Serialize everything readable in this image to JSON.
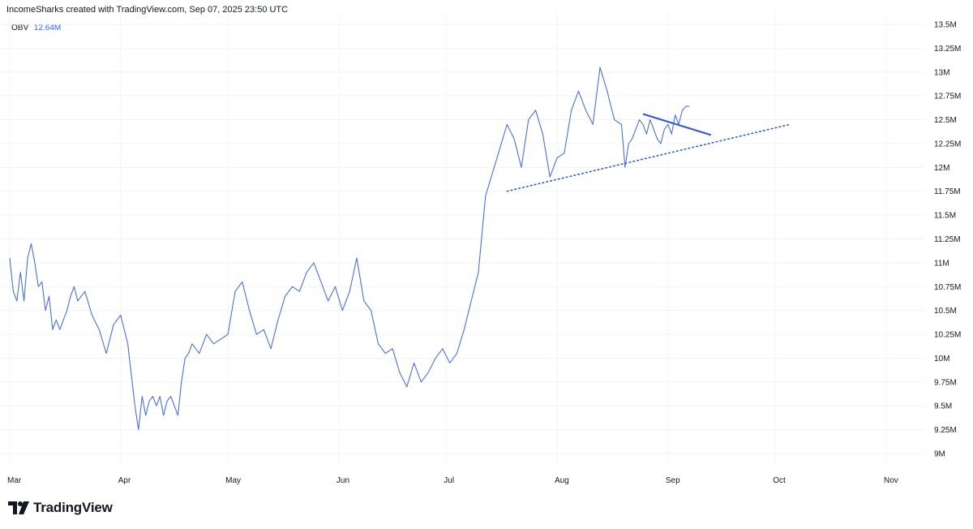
{
  "header": {
    "attribution": "IncomeSharks created with TradingView.com, Sep 07, 2025 23:50 UTC"
  },
  "legend": {
    "name": "OBV",
    "value": "12.64M"
  },
  "branding": {
    "logo_text": "TradingView"
  },
  "colors": {
    "series": "#4a72d4",
    "trendline": "#2d5bd6",
    "grid": "#f0f3fa",
    "text": "#131722"
  },
  "chart_data": {
    "type": "line",
    "title": "",
    "xlabel": "",
    "ylabel": "",
    "x_ticks": [
      "Mar",
      "Apr",
      "May",
      "Jun",
      "Jul",
      "Aug",
      "Sep",
      "Oct",
      "Nov"
    ],
    "y_ticks": [
      "13.5M",
      "13.25M",
      "13M",
      "12.75M",
      "12.5M",
      "12.25M",
      "12M",
      "11.75M",
      "11.5M",
      "11.25M",
      "11M",
      "10.75M",
      "10.5M",
      "10.25M",
      "10M",
      "9.75M",
      "9.5M",
      "9.25M",
      "9M"
    ],
    "y_tick_values": [
      13.5,
      13.25,
      13,
      12.75,
      12.5,
      12.25,
      12,
      11.75,
      11.5,
      11.25,
      11,
      10.75,
      10.5,
      10.25,
      10,
      9.75,
      9.5,
      9.25,
      9
    ],
    "ylim": [
      8.9,
      13.6
    ],
    "units": "M",
    "grid": true,
    "series": [
      {
        "name": "OBV",
        "dates": [
          "2025-03-01",
          "2025-03-02",
          "2025-03-03",
          "2025-03-04",
          "2025-03-05",
          "2025-03-06",
          "2025-03-07",
          "2025-03-08",
          "2025-03-09",
          "2025-03-10",
          "2025-03-11",
          "2025-03-12",
          "2025-03-13",
          "2025-03-14",
          "2025-03-15",
          "2025-03-16",
          "2025-03-17",
          "2025-03-18",
          "2025-03-19",
          "2025-03-20",
          "2025-03-22",
          "2025-03-24",
          "2025-03-26",
          "2025-03-28",
          "2025-03-30",
          "2025-04-01",
          "2025-04-03",
          "2025-04-05",
          "2025-04-06",
          "2025-04-07",
          "2025-04-08",
          "2025-04-09",
          "2025-04-10",
          "2025-04-11",
          "2025-04-12",
          "2025-04-13",
          "2025-04-14",
          "2025-04-15",
          "2025-04-16",
          "2025-04-17",
          "2025-04-18",
          "2025-04-19",
          "2025-04-20",
          "2025-04-21",
          "2025-04-23",
          "2025-04-25",
          "2025-04-27",
          "2025-04-29",
          "2025-05-01",
          "2025-05-03",
          "2025-05-05",
          "2025-05-07",
          "2025-05-09",
          "2025-05-11",
          "2025-05-13",
          "2025-05-15",
          "2025-05-17",
          "2025-05-19",
          "2025-05-21",
          "2025-05-23",
          "2025-05-25",
          "2025-05-27",
          "2025-05-29",
          "2025-05-31",
          "2025-06-02",
          "2025-06-04",
          "2025-06-06",
          "2025-06-08",
          "2025-06-10",
          "2025-06-12",
          "2025-06-14",
          "2025-06-16",
          "2025-06-18",
          "2025-06-20",
          "2025-06-22",
          "2025-06-24",
          "2025-06-26",
          "2025-06-28",
          "2025-06-30",
          "2025-07-02",
          "2025-07-04",
          "2025-07-06",
          "2025-07-08",
          "2025-07-10",
          "2025-07-12",
          "2025-07-14",
          "2025-07-16",
          "2025-07-18",
          "2025-07-20",
          "2025-07-22",
          "2025-07-24",
          "2025-07-26",
          "2025-07-28",
          "2025-07-30",
          "2025-08-01",
          "2025-08-03",
          "2025-08-05",
          "2025-08-07",
          "2025-08-09",
          "2025-08-11",
          "2025-08-13",
          "2025-08-15",
          "2025-08-17",
          "2025-08-19",
          "2025-08-20",
          "2025-08-21",
          "2025-08-22",
          "2025-08-23",
          "2025-08-24",
          "2025-08-25",
          "2025-08-26",
          "2025-08-27",
          "2025-08-28",
          "2025-08-29",
          "2025-08-30",
          "2025-08-31",
          "2025-09-01",
          "2025-09-02",
          "2025-09-03",
          "2025-09-04",
          "2025-09-05",
          "2025-09-06",
          "2025-09-07"
        ],
        "values": [
          11.05,
          10.7,
          10.6,
          10.9,
          10.6,
          11.05,
          11.2,
          11.0,
          10.75,
          10.8,
          10.5,
          10.65,
          10.3,
          10.4,
          10.3,
          10.4,
          10.5,
          10.65,
          10.75,
          10.6,
          10.7,
          10.45,
          10.3,
          10.05,
          10.35,
          10.45,
          10.15,
          9.5,
          9.25,
          9.6,
          9.4,
          9.55,
          9.6,
          9.5,
          9.6,
          9.4,
          9.55,
          9.6,
          9.5,
          9.4,
          9.75,
          10.0,
          10.05,
          10.15,
          10.05,
          10.25,
          10.15,
          10.2,
          10.25,
          10.7,
          10.8,
          10.5,
          10.25,
          10.3,
          10.1,
          10.4,
          10.65,
          10.75,
          10.7,
          10.9,
          11.0,
          10.8,
          10.6,
          10.75,
          10.5,
          10.7,
          11.05,
          10.6,
          10.5,
          10.15,
          10.05,
          10.1,
          9.85,
          9.7,
          9.95,
          9.75,
          9.85,
          10.0,
          10.1,
          9.95,
          10.05,
          10.3,
          10.6,
          10.9,
          11.7,
          11.95,
          12.2,
          12.45,
          12.3,
          12.0,
          12.5,
          12.6,
          12.35,
          11.9,
          12.1,
          12.15,
          12.6,
          12.8,
          12.6,
          12.45,
          13.05,
          12.8,
          12.5,
          12.45,
          12.0,
          12.25,
          12.3,
          12.4,
          12.5,
          12.45,
          12.35,
          12.5,
          12.4,
          12.3,
          12.25,
          12.4,
          12.45,
          12.35,
          12.55,
          12.45,
          12.6,
          12.64,
          12.64
        ]
      }
    ],
    "annotations": [
      {
        "type": "trendline",
        "style": "dotted",
        "from": {
          "date": "2025-07-18",
          "value": 11.75
        },
        "to": {
          "date": "2025-10-05",
          "value": 12.45
        }
      },
      {
        "type": "trendline",
        "style": "solid",
        "from": {
          "date": "2025-08-25",
          "value": 12.56
        },
        "to": {
          "date": "2025-09-13",
          "value": 12.34
        }
      }
    ]
  }
}
